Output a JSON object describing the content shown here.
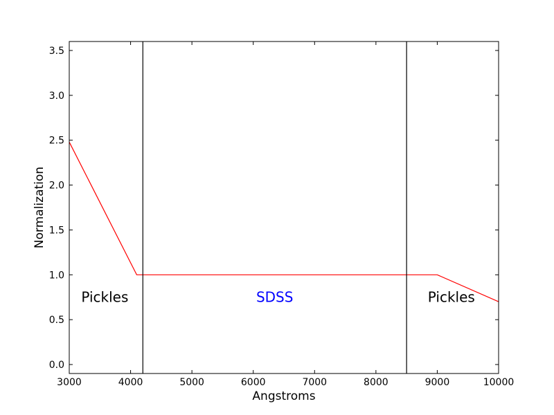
{
  "chart_data": {
    "type": "line",
    "title": "",
    "xlabel": "Angstroms",
    "ylabel": "Normalization",
    "xlim": [
      3000,
      10000
    ],
    "ylim": [
      -0.1,
      3.6
    ],
    "xticks": [
      3000,
      4000,
      5000,
      6000,
      7000,
      8000,
      9000,
      10000
    ],
    "xtick_labels": [
      "3000",
      "4000",
      "5000",
      "6000",
      "7000",
      "8000",
      "9000",
      "10000"
    ],
    "yticks": [
      0.0,
      0.5,
      1.0,
      1.5,
      2.0,
      2.5,
      3.0,
      3.5
    ],
    "ytick_labels": [
      "0.0",
      "0.5",
      "1.0",
      "1.5",
      "2.0",
      "2.5",
      "3.0",
      "3.5"
    ],
    "grid": false,
    "series": [
      {
        "color": "#ff0000",
        "x": [
          3000,
          4100,
          9000,
          10000
        ],
        "y": [
          2.48,
          1.0,
          1.0,
          0.7
        ]
      }
    ],
    "vlines": [
      {
        "x": 4200,
        "color": "#000000"
      },
      {
        "x": 8500,
        "color": "#000000"
      }
    ],
    "annotations": [
      {
        "text": "Pickles",
        "x": 3580,
        "y": 0.75,
        "color": "#000000"
      },
      {
        "text": "SDSS",
        "x": 6350,
        "y": 0.75,
        "color": "#0000ff"
      },
      {
        "text": "Pickles",
        "x": 9230,
        "y": 0.75,
        "color": "#000000"
      }
    ]
  }
}
